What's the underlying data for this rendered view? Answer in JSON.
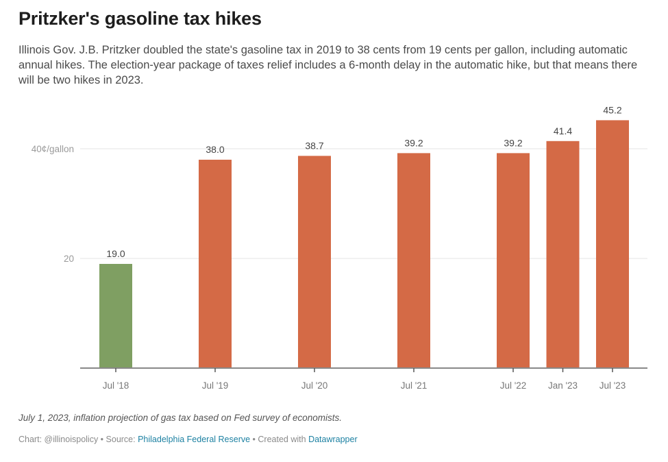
{
  "header": {
    "title": "Pritzker's gasoline tax hikes",
    "description": "Illinois Gov. J.B. Pritzker doubled the state's gasoline tax in 2019 to 38 cents from 19 cents per gallon, including automatic annual hikes. The election-year package of taxes relief includes a 6-month delay in the automatic hike, but that means there will be two hikes in 2023."
  },
  "footer": {
    "notes": "July 1, 2023, inflation projection of gas tax based on Fed survey of economists.",
    "chart_credit": "Chart: @illinoispolicy",
    "separator": " • ",
    "source_label": "Source: ",
    "source_link": "Philadelphia Federal Reserve",
    "created_label": "Created with ",
    "created_link": "Datawrapper"
  },
  "colors": {
    "before": "#7f9f62",
    "after": "#d46a46",
    "gridline": "#e6e6e6",
    "axis": "#888888",
    "label": "#444444",
    "tick": "#777777"
  },
  "chart_data": {
    "type": "bar",
    "title": "Pritzker's gasoline tax hikes",
    "xlabel": "",
    "ylabel": "",
    "categories": [
      "Jul '18",
      "Jul '19",
      "Jul '20",
      "Jul '21",
      "Jul '22",
      "Jan '23",
      "Jul '23"
    ],
    "x_dates": [
      "2018-07",
      "2019-07",
      "2020-07",
      "2021-07",
      "2022-07",
      "2023-01",
      "2023-07"
    ],
    "values": [
      19.0,
      38.0,
      38.7,
      39.2,
      39.2,
      41.4,
      45.2
    ],
    "value_labels": [
      "19.0",
      "38.0",
      "38.7",
      "39.2",
      "39.2",
      "41.4",
      "45.2"
    ],
    "bar_color_keys": [
      "before",
      "after",
      "after",
      "after",
      "after",
      "after",
      "after"
    ],
    "ylim": [
      0,
      45.2
    ],
    "yticks": [
      {
        "value": 20,
        "label": "20"
      },
      {
        "value": 40,
        "label": "40¢/gallon"
      }
    ],
    "grid": true,
    "legend": "none"
  }
}
